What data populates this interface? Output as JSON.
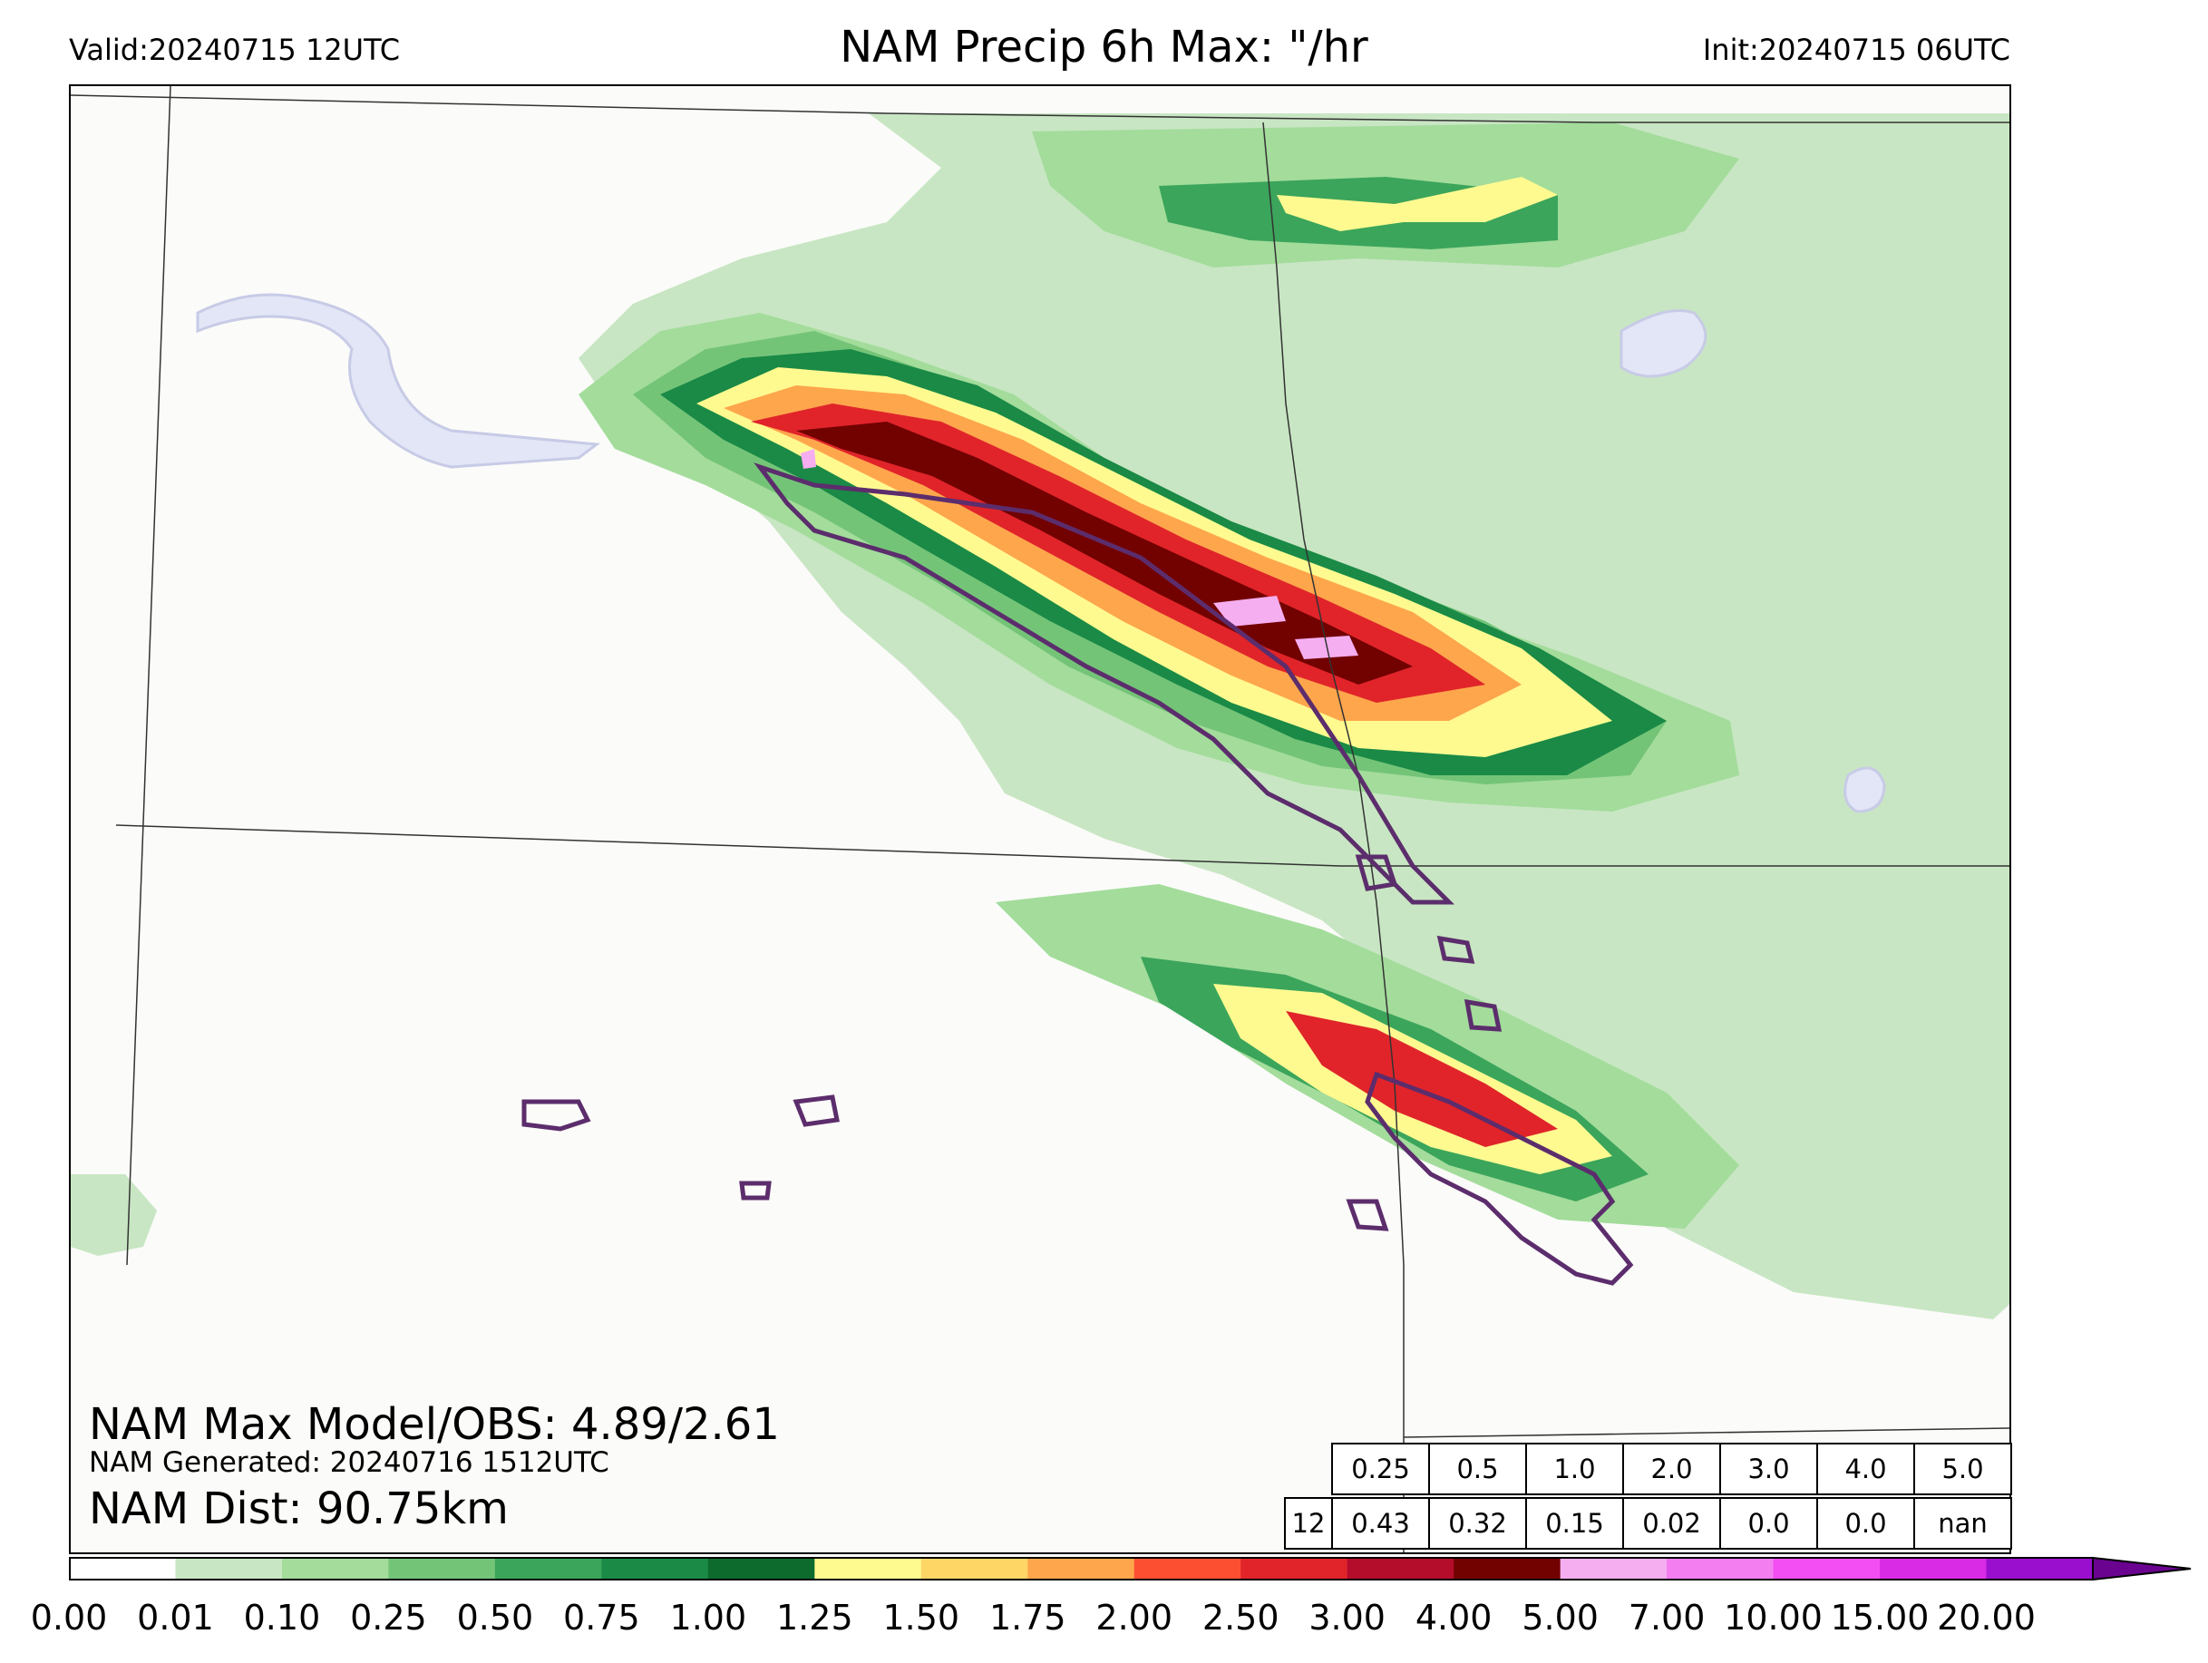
{
  "header": {
    "valid": "Valid:20240715 12UTC",
    "title": "NAM Precip 6h Max: \"/hr",
    "init": "Init:20240715 06UTC"
  },
  "stats": {
    "max_line": "NAM Max Model/OBS: 4.89/2.61",
    "generated_line": "NAM Generated: 20240716 1512UTC",
    "dist_line": "NAM Dist: 90.75km"
  },
  "threshold_table": {
    "thresholds": [
      "0.25",
      "0.5",
      "1.0",
      "2.0",
      "3.0",
      "4.0",
      "5.0"
    ],
    "hour": "12",
    "values": [
      "0.43",
      "0.32",
      "0.15",
      "0.02",
      "0.0",
      "0.0",
      "nan"
    ]
  },
  "colorbar": {
    "ticks": [
      "0.00",
      "0.01",
      "0.10",
      "0.25",
      "0.50",
      "0.75",
      "1.00",
      "1.25",
      "1.50",
      "1.75",
      "2.00",
      "2.50",
      "3.00",
      "4.00",
      "5.00",
      "7.00",
      "10.00",
      "15.00",
      "20.00"
    ],
    "colors": [
      "#ffffff",
      "#c8e6c3",
      "#a3dc9b",
      "#74c478",
      "#3ba55b",
      "#1a8a46",
      "#0d6b2e",
      "#fffa90",
      "#fed665",
      "#fea64c",
      "#fc4f32",
      "#e0242a",
      "#b40c2b",
      "#720200",
      "#f5aef0",
      "#f37ef0",
      "#f24ef4",
      "#d92ae6",
      "#9a0fcd"
    ],
    "extend_color": "#6a0390"
  },
  "overlays": {
    "obs_contour_color": "#5c2d6c",
    "water_color": "#e3e6f6",
    "border_color": "#333333"
  }
}
